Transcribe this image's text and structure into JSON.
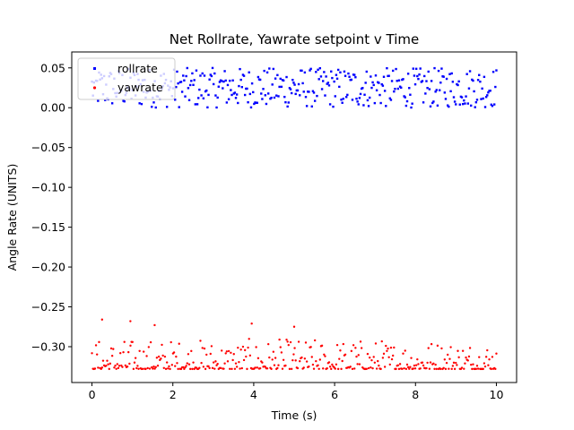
{
  "chart_data": {
    "type": "scatter",
    "title": "Net Rollrate, Yawrate setpoint v Time",
    "xlabel": "Time (s)",
    "ylabel": "Angle Rate (UNITS)",
    "xlim": [
      -0.5,
      10.5
    ],
    "ylim": [
      -0.345,
      0.07
    ],
    "xticks": [
      0,
      2,
      4,
      6,
      8,
      10
    ],
    "xtick_labels": [
      "0",
      "2",
      "4",
      "6",
      "8",
      "10"
    ],
    "yticks": [
      0.05,
      0.0,
      -0.05,
      -0.1,
      -0.15,
      -0.2,
      -0.25,
      -0.3
    ],
    "ytick_labels": [
      "0.05",
      "0.00",
      "−0.05",
      "−0.10",
      "−0.15",
      "−0.20",
      "−0.25",
      "−0.30"
    ],
    "grid": false,
    "legend_position": "top-left",
    "series": [
      {
        "name": "rollrate",
        "color": "#0000ff",
        "marker": "square",
        "x_start": 0.0,
        "x_end": 10.0,
        "count": 400,
        "y_min": 0.0,
        "y_max": 0.05,
        "sample_points": [
          [
            0.0,
            0.005
          ],
          [
            0.5,
            0.04
          ],
          [
            1.0,
            0.02
          ],
          [
            2.0,
            0.045
          ],
          [
            3.0,
            0.01
          ],
          [
            4.0,
            0.03
          ],
          [
            5.0,
            0.048
          ],
          [
            6.0,
            0.015
          ],
          [
            7.0,
            0.042
          ],
          [
            8.0,
            0.025
          ],
          [
            9.0,
            0.047
          ],
          [
            10.0,
            0.01
          ]
        ]
      },
      {
        "name": "yawrate",
        "color": "#ff0000",
        "marker": "circle",
        "x_start": 0.0,
        "x_end": 10.0,
        "count": 400,
        "y_min": -0.328,
        "y_max": -0.265,
        "sample_points": [
          [
            0.25,
            -0.266
          ],
          [
            0.95,
            -0.268
          ],
          [
            1.55,
            -0.273
          ],
          [
            3.95,
            -0.271
          ],
          [
            5.0,
            -0.275
          ],
          [
            0.0,
            -0.32
          ],
          [
            2.0,
            -0.325
          ],
          [
            4.0,
            -0.322
          ],
          [
            6.0,
            -0.326
          ],
          [
            8.0,
            -0.324
          ],
          [
            10.0,
            -0.31
          ]
        ]
      }
    ]
  }
}
